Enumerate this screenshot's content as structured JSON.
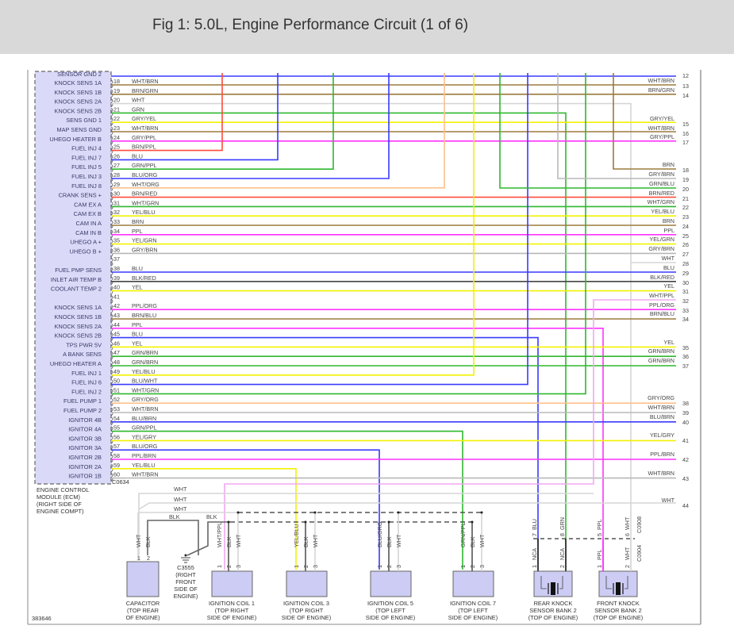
{
  "header": {
    "title": "Fig 1: 5.0L, Engine Performance Circuit (1 of 6)"
  },
  "colors": {
    "BLU": "#3a3aff",
    "BRN": "#9b7b3b",
    "WHT": "#d6d6d6",
    "GRN": "#2eb82e",
    "GRY": "#b8b8b8",
    "YEL": "#f2f200",
    "PPL": "#ff33ff",
    "ORG": "#ffc08a",
    "RED": "#ff4b3a",
    "BLK": "#444444",
    "ecm_fill": "#dadaf8",
    "component_fill": "#ccccf4"
  },
  "ecm": {
    "top_label": "SENSOR GND 2",
    "connector": "C0634",
    "name": [
      "ENGINE CONTROL",
      "MODULE (ECM)",
      "(RIGHT SIDE OF",
      "ENGINE COMPT)"
    ]
  },
  "top_wire": {
    "right_pin": "12",
    "color": "BLU"
  },
  "pins": [
    {
      "pin": "18",
      "label": "KNOCK SENS 1A",
      "wire": "WHT/BRN",
      "color": "BRN"
    },
    {
      "pin": "19",
      "label": "KNOCK SENS 1B",
      "wire": "BRN/GRN",
      "color": "BRN"
    },
    {
      "pin": "20",
      "label": "KNOCK SENS 2A",
      "wire": "WHT",
      "color": "WHT"
    },
    {
      "pin": "21",
      "label": "KNOCK SENS 2B",
      "wire": "GRN",
      "color": "GRN"
    },
    {
      "pin": "22",
      "label": "SENS GND 1",
      "wire": "GRY/YEL",
      "color": "YEL"
    },
    {
      "pin": "23",
      "label": "MAP SENS GND",
      "wire": "WHT/BRN",
      "color": "BRN"
    },
    {
      "pin": "24",
      "label": "UHEGO HEATER B",
      "wire": "GRY/PPL",
      "color": "PPL"
    },
    {
      "pin": "25",
      "label": "FUEL INJ 4",
      "wire": "BRN/PPL",
      "color": "RED"
    },
    {
      "pin": "26",
      "label": "FUEL INJ 7",
      "wire": "BLU",
      "color": "BLU"
    },
    {
      "pin": "27",
      "label": "FUEL INJ 5",
      "wire": "GRN/PPL",
      "color": "GRN"
    },
    {
      "pin": "28",
      "label": "FUEL INJ 3",
      "wire": "BLU/ORG",
      "color": "BLU"
    },
    {
      "pin": "29",
      "label": "FUEL INJ 8",
      "wire": "WHT/ORG",
      "color": "ORG"
    },
    {
      "pin": "30",
      "label": "CRANK SENS +",
      "wire": "BRN/RED",
      "color": "RED"
    },
    {
      "pin": "31",
      "label": "CAM EX A",
      "wire": "WHT/GRN",
      "color": "GRN"
    },
    {
      "pin": "32",
      "label": "CAM EX B",
      "wire": "YEL/BLU",
      "color": "YEL"
    },
    {
      "pin": "33",
      "label": "CAM IN A",
      "wire": "BRN",
      "color": "BRN"
    },
    {
      "pin": "34",
      "label": "CAM IN B",
      "wire": "PPL",
      "color": "PPL"
    },
    {
      "pin": "35",
      "label": "UHEGO A +",
      "wire": "YEL/GRN",
      "color": "YEL"
    },
    {
      "pin": "36",
      "label": "UHEGO B +",
      "wire": "GRY/BRN",
      "color": "GRY"
    },
    {
      "pin": "37",
      "label": "",
      "wire": "",
      "color": ""
    },
    {
      "pin": "38",
      "label": "FUEL PMP SENS",
      "wire": "BLU",
      "color": "BLU"
    },
    {
      "pin": "39",
      "label": "INLET AIR TEMP B",
      "wire": "BLK/RED",
      "color": "BLK"
    },
    {
      "pin": "40",
      "label": "COOLANT TEMP 2",
      "wire": "YEL",
      "color": "YEL"
    },
    {
      "pin": "41",
      "label": "",
      "wire": "",
      "color": ""
    },
    {
      "pin": "42",
      "label": "KNOCK SENS 1A",
      "wire": "PPL/ORG",
      "color": "PPL"
    },
    {
      "pin": "43",
      "label": "KNOCK SENS 1B",
      "wire": "BRN/BLU",
      "color": "BRN"
    },
    {
      "pin": "44",
      "label": "KNOCK SENS 2A",
      "wire": "PPL",
      "color": "PPL"
    },
    {
      "pin": "45",
      "label": "KNOCK SENS 2B",
      "wire": "BLU",
      "color": "BLU"
    },
    {
      "pin": "46",
      "label": "TPS PWR 5V",
      "wire": "YEL",
      "color": "YEL"
    },
    {
      "pin": "47",
      "label": "A BANK SENS",
      "wire": "GRN/BRN",
      "color": "GRN"
    },
    {
      "pin": "48",
      "label": "UHEGO HEATER A",
      "wire": "GRN/BRN",
      "color": "GRN"
    },
    {
      "pin": "49",
      "label": "FUEL INJ 1",
      "wire": "YEL/BLU",
      "color": "YEL"
    },
    {
      "pin": "50",
      "label": "FUEL INJ 6",
      "wire": "BLU/WHT",
      "color": "BLU"
    },
    {
      "pin": "51",
      "label": "FUEL INJ 2",
      "wire": "WHT/GRN",
      "color": "GRN"
    },
    {
      "pin": "52",
      "label": "FUEL PUMP 1",
      "wire": "GRY/ORG",
      "color": "ORG"
    },
    {
      "pin": "53",
      "label": "FUEL PUMP 2",
      "wire": "WHT/BRN",
      "color": "GRY"
    },
    {
      "pin": "54",
      "label": "IGNITOR 4B",
      "wire": "BLU/BRN",
      "color": "BLU"
    },
    {
      "pin": "55",
      "label": "IGNITOR 4A",
      "wire": "GRN/PPL",
      "color": "GRN"
    },
    {
      "pin": "56",
      "label": "IGNITOR 3B",
      "wire": "YEL/GRY",
      "color": "YEL"
    },
    {
      "pin": "57",
      "label": "IGNITOR 3A",
      "wire": "BLU/ORG",
      "color": "BLU"
    },
    {
      "pin": "58",
      "label": "IGNITOR 2B",
      "wire": "PPL/BRN",
      "color": "PPL"
    },
    {
      "pin": "59",
      "label": "IGNITOR 2A",
      "wire": "YEL/BLU",
      "color": "YEL"
    },
    {
      "pin": "60",
      "label": "IGNITOR 1B",
      "wire": "WHT/BRN",
      "color": "GRY"
    }
  ],
  "right_pins": [
    {
      "pin": "13",
      "wire": "WHT/BRN"
    },
    {
      "pin": "14",
      "wire": "BRN/GRN"
    },
    {
      "pin": "15",
      "wire": "GRY/YEL"
    },
    {
      "pin": "16",
      "wire": "WHT/BRN"
    },
    {
      "pin": "17",
      "wire": "GRY/PPL"
    },
    {
      "pin": "18",
      "wire": "BRN"
    },
    {
      "pin": "19",
      "wire": "GRY/BRN"
    },
    {
      "pin": "20",
      "wire": "GRN/BLU"
    },
    {
      "pin": "21",
      "wire": "BRN/RED"
    },
    {
      "pin": "22",
      "wire": "WHT/GRN"
    },
    {
      "pin": "23",
      "wire": "YEL/BLU"
    },
    {
      "pin": "24",
      "wire": "BRN"
    },
    {
      "pin": "25",
      "wire": "PPL"
    },
    {
      "pin": "26",
      "wire": "YEL/GRN"
    },
    {
      "pin": "27",
      "wire": "GRY/BRN"
    },
    {
      "pin": "28",
      "wire": "WHT"
    },
    {
      "pin": "29",
      "wire": "BLU"
    },
    {
      "pin": "30",
      "wire": "BLK/RED"
    },
    {
      "pin": "31",
      "wire": "YEL"
    },
    {
      "pin": "32",
      "wire": "WHT/PPL"
    },
    {
      "pin": "33",
      "wire": "PPL/ORG"
    },
    {
      "pin": "34",
      "wire": "BRN/BLU"
    },
    {
      "pin": "35",
      "wire": "YEL"
    },
    {
      "pin": "36",
      "wire": "GRN/BRN"
    },
    {
      "pin": "37",
      "wire": "GRN/BRN"
    },
    {
      "pin": "38",
      "wire": "GRY/ORG"
    },
    {
      "pin": "39",
      "wire": "WHT/BRN"
    },
    {
      "pin": "40",
      "wire": "BLU/BRN"
    },
    {
      "pin": "41",
      "wire": "YEL/GRY"
    },
    {
      "pin": "42",
      "wire": "PPL/BRN"
    },
    {
      "pin": "43",
      "wire": "WHT/BRN"
    },
    {
      "pin": "44",
      "wire": "WHT"
    }
  ],
  "bus_labels": {
    "wht1": "WHT",
    "wht2": "WHT",
    "wht3": "WHT",
    "blk1": "BLK",
    "blk2": "BLK"
  },
  "components": [
    {
      "id": "capacitor",
      "name": [
        "CAPACITOR",
        "(TOP REAR",
        "OF ENGINE)"
      ],
      "wires": [
        "WHT",
        "BLK"
      ],
      "pins": [
        "1",
        "2"
      ]
    },
    {
      "id": "ground",
      "name": [
        "C3555",
        "(RIGHT",
        "FRONT",
        "SIDE OF",
        "ENGINE)"
      ]
    },
    {
      "id": "coil1",
      "name": [
        "IGNITION COIL 1",
        "(TOP RIGHT",
        "SIDE OF ENGINE)"
      ],
      "wires": [
        "WHT/PPL",
        "BLK",
        "WHT"
      ],
      "pins": [
        "1",
        "2",
        "3"
      ]
    },
    {
      "id": "coil3",
      "name": [
        "IGNITION COIL 3",
        "(TOP RIGHT",
        "SIDE OF ENGINE)"
      ],
      "wires": [
        "YEL/BLU",
        "BLK",
        "WHT"
      ],
      "pins": [
        "1",
        "2",
        "3"
      ]
    },
    {
      "id": "coil5",
      "name": [
        "IGNITION COIL 5",
        "(TOP LEFT",
        "SIDE OF ENGINE)"
      ],
      "wires": [
        "BLU/ORG",
        "BLK",
        "WHT"
      ],
      "pins": [
        "1",
        "2",
        "3"
      ]
    },
    {
      "id": "coil7",
      "name": [
        "IGNITION COIL 7",
        "(TOP LEFT",
        "SIDE OF ENGINE)"
      ],
      "wires": [
        "GRN/PPL",
        "BLK",
        "WHT"
      ],
      "pins": [
        "1",
        "2",
        "3"
      ]
    },
    {
      "id": "rear-knock",
      "name": [
        "REAR KNOCK",
        "SENSOR BANK 2",
        "(TOP OF ENGINE)"
      ],
      "upper_wires": [
        "BLU",
        "GRN"
      ],
      "upper_pins": [
        "7",
        "8"
      ],
      "wires": [
        "NCA",
        "NCA"
      ],
      "pins": [
        "1",
        "2"
      ]
    },
    {
      "id": "front-knock",
      "name": [
        "FRONT KNOCK",
        "SENSOR BANK 2",
        "(TOP OF ENGINE)"
      ],
      "upper_wires": [
        "PPL",
        "WHT"
      ],
      "upper_pins": [
        "5",
        "6"
      ],
      "wires": [
        "PPL",
        "WHT"
      ],
      "pins": [
        "1",
        "2"
      ]
    }
  ],
  "connectors": {
    "upper": "C0908",
    "lower": "C0904"
  },
  "figure_id": "383646"
}
